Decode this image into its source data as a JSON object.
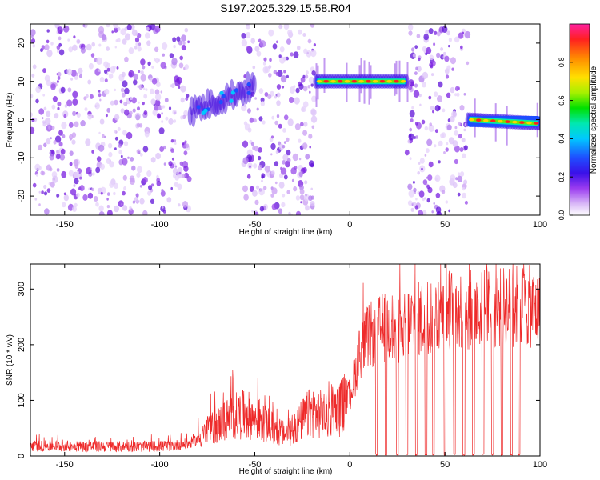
{
  "title": "S197.2025.329.15.58.R04",
  "colors": {
    "spectrogram_band": "#7a1fe0",
    "spectrogram_light": "#d7b8f5",
    "snr_line": "#ee2a2a"
  },
  "chart_data": [
    {
      "type": "heatmap",
      "name": "spectrogram",
      "xlabel": "Height of straight line (km)",
      "ylabel": "Frequency (Hz)",
      "xlim": [
        -168,
        100
      ],
      "ylim": [
        -25,
        25
      ],
      "xticks": [
        -150,
        -100,
        -50,
        0,
        50,
        100
      ],
      "xtick_labels": [
        "-150",
        "-100",
        "-50",
        "0",
        "50",
        "100"
      ],
      "yticks": [
        -20,
        -10,
        0,
        10,
        20
      ],
      "ytick_labels": [
        "-20",
        "-10",
        "0",
        "10",
        "20"
      ],
      "colorbar": {
        "label": "Normalized spectral amplitude",
        "range": [
          0,
          1
        ],
        "ticks": [
          0.0,
          0.2,
          0.4,
          0.6,
          0.8
        ],
        "tick_labels": [
          "0.0",
          "0.2",
          "0.4",
          "0.6",
          "0.8"
        ]
      },
      "noise_segments_km": [
        [
          -168,
          -84
        ],
        [
          -56,
          -18
        ],
        [
          30,
          62
        ]
      ],
      "carrier_segments": [
        {
          "x_range": [
            -84,
            -50
          ],
          "freq_start": 2,
          "freq_end": 9,
          "peak_amplitude": 0.45
        },
        {
          "x_range": [
            -18,
            30
          ],
          "freq_start": 10,
          "freq_end": 10,
          "peak_amplitude": 0.95
        },
        {
          "x_range": [
            62,
            100
          ],
          "freq_start": 0,
          "freq_end": -1,
          "peak_amplitude": 0.95
        }
      ]
    },
    {
      "type": "line",
      "name": "snr",
      "xlabel": "Height of straight line (km)",
      "ylabel": "SNR (10 * v/v)",
      "xlim": [
        -168,
        100
      ],
      "ylim": [
        0,
        345
      ],
      "xticks": [
        -150,
        -100,
        -50,
        0,
        50,
        100
      ],
      "xtick_labels": [
        "-150",
        "-100",
        "-50",
        "0",
        "50",
        "100"
      ],
      "yticks": [
        0,
        100,
        200,
        300
      ],
      "ytick_labels": [
        "0",
        "100",
        "200",
        "300"
      ],
      "series": [
        {
          "name": "SNR",
          "x": [
            -168,
            -150,
            -130,
            -110,
            -95,
            -85,
            -80,
            -75,
            -70,
            -65,
            -60,
            -55,
            -50,
            -45,
            -40,
            -35,
            -30,
            -25,
            -20,
            -15,
            -10,
            -5,
            0,
            3,
            6,
            10,
            15,
            20,
            25,
            30,
            35,
            40,
            45,
            50,
            55,
            60,
            65,
            70,
            75,
            80,
            85,
            90,
            95,
            100
          ],
          "values": [
            18,
            18,
            17,
            17,
            18,
            22,
            30,
            45,
            55,
            65,
            72,
            75,
            70,
            60,
            48,
            40,
            45,
            65,
            80,
            75,
            72,
            85,
            110,
            150,
            195,
            215,
            225,
            235,
            225,
            240,
            245,
            250,
            255,
            262,
            265,
            262,
            262,
            262,
            265,
            268,
            268,
            270,
            268,
            255
          ],
          "dropout_centers_km": [
            14,
            19,
            25,
            30,
            35,
            40,
            44,
            50,
            55,
            60,
            65,
            70,
            75,
            80,
            85,
            89
          ]
        }
      ]
    }
  ]
}
